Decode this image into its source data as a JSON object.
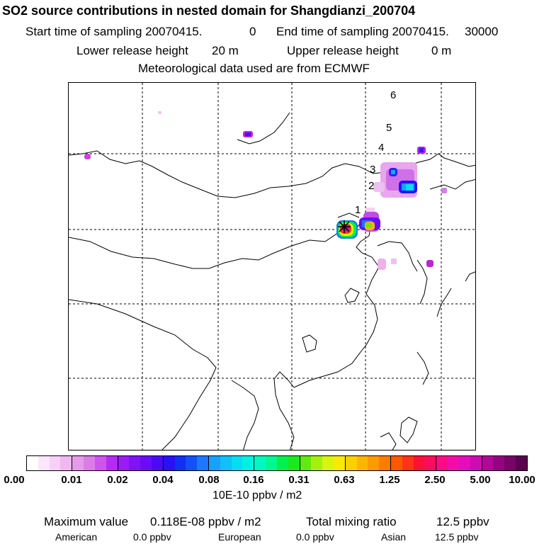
{
  "header": {
    "title": "SO2 source contributions in nested domain for Shangdianzi_200704",
    "start_label": "Start time of sampling 20070415.",
    "start_value": "0",
    "end_label": "End time of sampling 20070415.",
    "end_value": "30000",
    "lower_label": "Lower release height",
    "lower_value": "20 m",
    "upper_label": "Upper release height",
    "upper_value": "0 m",
    "meteo": "Meteorological data used are from ECMWF"
  },
  "map": {
    "trajectory_labels": [
      "1",
      "2",
      "3",
      "4",
      "5",
      "6"
    ],
    "receptor_icon": "star-x-marker",
    "colors": {
      "coastline": "#000000",
      "grid": "#000000"
    }
  },
  "colorbar": {
    "colors": [
      "#ffffff",
      "#fbe6fb",
      "#f6d0f6",
      "#f0b8f0",
      "#e49ce8",
      "#da7ee6",
      "#cc55ec",
      "#b42cf0",
      "#9a1cf4",
      "#8012f6",
      "#6a0cf8",
      "#4a0af6",
      "#2a10f4",
      "#1030f2",
      "#1450f8",
      "#1c78fc",
      "#18a0fa",
      "#10c0f6",
      "#08dcf0",
      "#00f0e0",
      "#00f8c0",
      "#00f890",
      "#00f050",
      "#1ae820",
      "#60ea10",
      "#a6f010",
      "#d8f410",
      "#f8ea00",
      "#fcd000",
      "#fcb600",
      "#fc9a00",
      "#fc7c00",
      "#fc5800",
      "#fc3418",
      "#fc1038",
      "#fc0c5c",
      "#fc0c84",
      "#f40ca8",
      "#e40cbc",
      "#cc0cb0",
      "#b00898",
      "#940480",
      "#780468",
      "#5a024e"
    ],
    "ticks": [
      "0.00",
      "0.01",
      "0.02",
      "0.04",
      "0.08",
      "0.16",
      "0.31",
      "0.63",
      "1.25",
      "2.50",
      "5.00",
      "10.00"
    ],
    "unit": "10E-10 ppbv / m2"
  },
  "stats": {
    "max_label": "Maximum value",
    "max_value": "0.118E-08 ppbv / m2",
    "total_label": "Total mixing ratio",
    "total_value": "12.5 ppbv",
    "american_label": "American",
    "american_value": "0.0 ppbv",
    "european_label": "European",
    "european_value": "0.0 ppbv",
    "asian_label": "Asian",
    "asian_value": "12.5 ppbv"
  }
}
